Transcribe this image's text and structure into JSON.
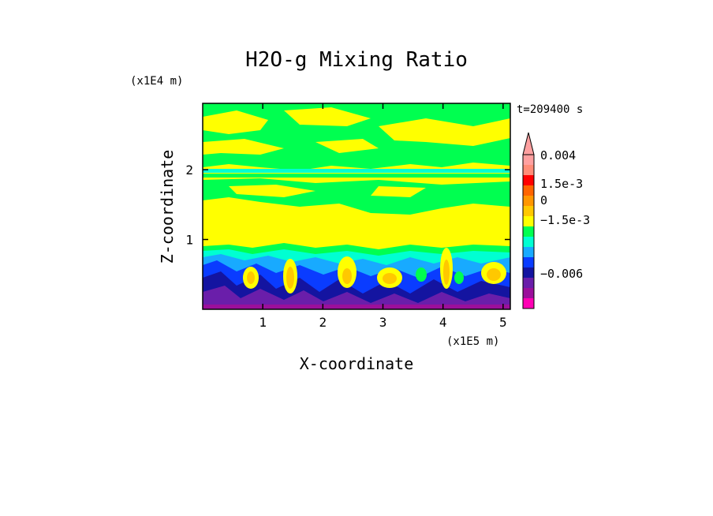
{
  "chart_data": {
    "type": "heatmap",
    "title": "H2O-g Mixing Ratio",
    "xlabel": "X-coordinate",
    "ylabel": "Z-coordinate",
    "x_unit": "(x1E5 m)",
    "y_unit": "(x1E4 m)",
    "time_label": "t=209400 s",
    "x_ticks": [
      "1",
      "2",
      "3",
      "4",
      "5"
    ],
    "x_tick_values": [
      1,
      2,
      3,
      4,
      5
    ],
    "y_ticks": [
      "1",
      "2"
    ],
    "y_tick_values": [
      1,
      2
    ],
    "xlim": [
      0,
      5.12
    ],
    "ylim": [
      0,
      2.95
    ],
    "colorbar": {
      "levels": [
        {
          "color": "#ff00b4"
        },
        {
          "color": "#9b0f9b"
        },
        {
          "color": "#6a1eaa"
        },
        {
          "color": "#1414a0"
        },
        {
          "color": "#0a3cff"
        },
        {
          "color": "#18aaff"
        },
        {
          "color": "#00ffd2"
        },
        {
          "color": "#00ff50"
        },
        {
          "color": "#ffff00"
        },
        {
          "color": "#ffc800"
        },
        {
          "color": "#ff9600"
        },
        {
          "color": "#ff6400"
        },
        {
          "color": "#ff0000"
        },
        {
          "color": "#ff8c78"
        },
        {
          "color": "#ffa0a0"
        }
      ],
      "labels": [
        "0.004",
        "1.5e-3",
        "0",
        "−1.5e-3",
        "−0.006"
      ],
      "extend_top": true
    }
  }
}
